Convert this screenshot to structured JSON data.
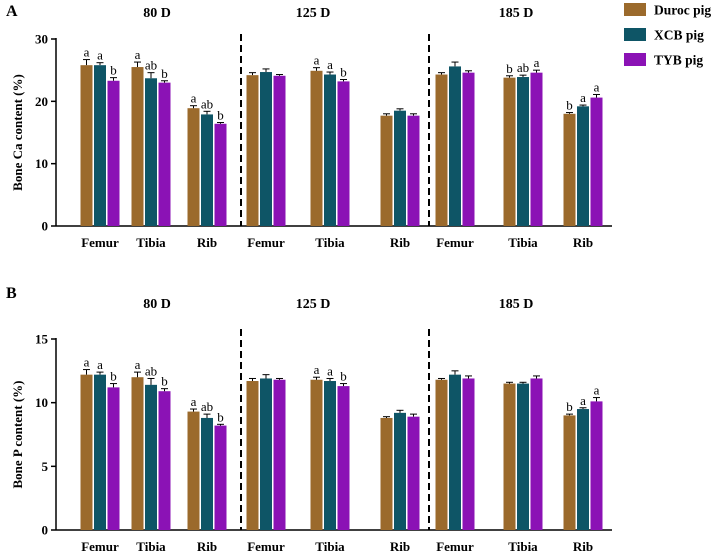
{
  "legend": {
    "placement": "top-right",
    "entries": [
      {
        "name": "Duroc pig",
        "color": "#9B6A2C"
      },
      {
        "name": "XCB pig",
        "color": "#0E5566"
      },
      {
        "name": "TYB pig",
        "color": "#8B12B5"
      }
    ]
  },
  "chart_data": [
    {
      "panel_label": "A",
      "type": "bar",
      "ylabel": "Bone Ca content (%)",
      "ylim": [
        0,
        30
      ],
      "yticks": [
        "0",
        "10",
        "20",
        "30"
      ],
      "groups": [
        {
          "title": "80 D",
          "categories": [
            "Femur",
            "Tibia",
            "Rib"
          ],
          "values": [
            [
              25.8,
              25.8,
              23.3
            ],
            [
              25.5,
              23.7,
              23.0
            ],
            [
              18.9,
              17.9,
              16.4
            ]
          ],
          "errors": [
            [
              0.9,
              0.4,
              0.5
            ],
            [
              0.8,
              0.9,
              0.3
            ],
            [
              0.4,
              0.5,
              0.2
            ]
          ],
          "letters": [
            [
              "a",
              "a",
              "b"
            ],
            [
              "a",
              "ab",
              "b"
            ],
            [
              "a",
              "ab",
              "b"
            ]
          ]
        },
        {
          "title": "125 D",
          "categories": [
            "Femur",
            "Tibia",
            "Rib"
          ],
          "values": [
            [
              24.2,
              24.7,
              24.1
            ],
            [
              24.9,
              24.3,
              23.2
            ],
            [
              17.7,
              18.5,
              17.7
            ]
          ],
          "errors": [
            [
              0.4,
              0.5,
              0.2
            ],
            [
              0.5,
              0.4,
              0.3
            ],
            [
              0.3,
              0.3,
              0.3
            ]
          ],
          "letters": [
            [
              "",
              "",
              ""
            ],
            [
              "a",
              "a",
              "b"
            ],
            [
              "",
              "",
              ""
            ]
          ]
        },
        {
          "title": "185 D",
          "categories": [
            "Femur",
            "Tibia",
            "Rib"
          ],
          "values": [
            [
              24.3,
              25.6,
              24.6
            ],
            [
              23.8,
              23.9,
              24.6
            ],
            [
              18.0,
              19.2,
              20.6
            ]
          ],
          "errors": [
            [
              0.3,
              0.7,
              0.3
            ],
            [
              0.3,
              0.3,
              0.4
            ],
            [
              0.2,
              0.2,
              0.5
            ]
          ],
          "letters": [
            [
              "",
              "",
              ""
            ],
            [
              "b",
              "ab",
              "a"
            ],
            [
              "b",
              "a",
              "a"
            ]
          ]
        }
      ]
    },
    {
      "panel_label": "B",
      "type": "bar",
      "ylabel": "Bone P content (%)",
      "ylim": [
        0,
        15
      ],
      "yticks": [
        "0",
        "5",
        "10",
        "15"
      ],
      "groups": [
        {
          "title": "80 D",
          "categories": [
            "Femur",
            "Tibia",
            "Rib"
          ],
          "values": [
            [
              12.2,
              12.2,
              11.2
            ],
            [
              12.0,
              11.4,
              10.9
            ],
            [
              9.3,
              8.8,
              8.2
            ]
          ],
          "errors": [
            [
              0.4,
              0.2,
              0.3
            ],
            [
              0.4,
              0.5,
              0.2
            ],
            [
              0.2,
              0.3,
              0.1
            ]
          ],
          "letters": [
            [
              "a",
              "a",
              "b"
            ],
            [
              "a",
              "ab",
              "b"
            ],
            [
              "a",
              "ab",
              "b"
            ]
          ]
        },
        {
          "title": "125 D",
          "categories": [
            "Femur",
            "Tibia",
            "Rib"
          ],
          "values": [
            [
              11.7,
              11.9,
              11.8
            ],
            [
              11.8,
              11.7,
              11.3
            ],
            [
              8.8,
              9.2,
              8.9
            ]
          ],
          "errors": [
            [
              0.2,
              0.3,
              0.1
            ],
            [
              0.2,
              0.2,
              0.2
            ],
            [
              0.1,
              0.2,
              0.2
            ]
          ],
          "letters": [
            [
              "",
              "",
              ""
            ],
            [
              "a",
              "a",
              "b"
            ],
            [
              "",
              "",
              ""
            ]
          ]
        },
        {
          "title": "185 D",
          "categories": [
            "Femur",
            "Tibia",
            "Rib"
          ],
          "values": [
            [
              11.8,
              12.2,
              11.9
            ],
            [
              11.5,
              11.5,
              11.9
            ],
            [
              9.0,
              9.5,
              10.1
            ]
          ],
          "errors": [
            [
              0.1,
              0.3,
              0.2
            ],
            [
              0.1,
              0.1,
              0.2
            ],
            [
              0.1,
              0.1,
              0.3
            ]
          ],
          "letters": [
            [
              "",
              "",
              ""
            ],
            [
              "",
              "",
              ""
            ],
            [
              "b",
              "a",
              "a"
            ]
          ]
        }
      ]
    }
  ]
}
